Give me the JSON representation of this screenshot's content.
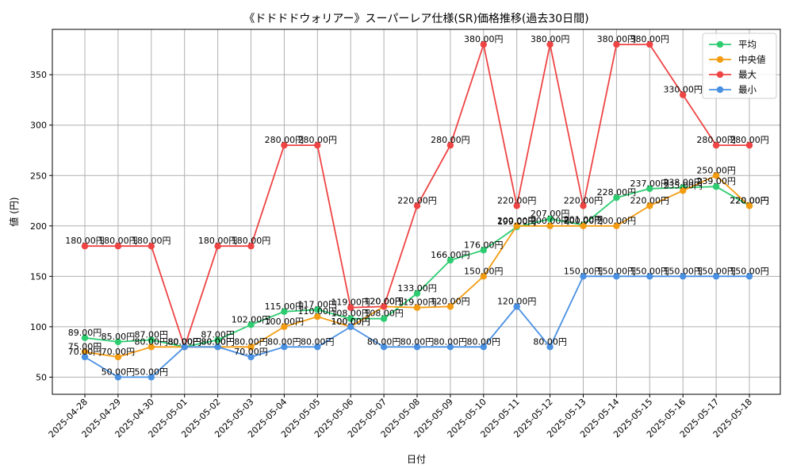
{
  "chart_data": {
    "type": "line",
    "title": "《ドドドドウォリアー》スーパーレア仕様(SR)価格推移(過去30日間)",
    "xlabel": "日付",
    "ylabel": "値 (円)",
    "ylim": [
      33,
      395
    ],
    "yticks": [
      50,
      100,
      150,
      200,
      250,
      300,
      350
    ],
    "grid": true,
    "legend_position": "top-right",
    "label_suffix": "円",
    "categories": [
      "2025-04-28",
      "2025-04-29",
      "2025-04-30",
      "2025-05-01",
      "2025-05-02",
      "2025-05-03",
      "2025-05-04",
      "2025-05-05",
      "2025-05-06",
      "2025-05-07",
      "2025-05-08",
      "2025-05-09",
      "2025-05-10",
      "2025-05-11",
      "2025-05-12",
      "2025-05-13",
      "2025-05-14",
      "2025-05-15",
      "2025-05-16",
      "2025-05-17",
      "2025-05-18"
    ],
    "series": [
      {
        "name": "平均",
        "color": "#2ecc71",
        "values": [
          89,
          85,
          87,
          80,
          87,
          102,
          115,
          117,
          108,
          108,
          133,
          166,
          176,
          199,
          207,
          201,
          228,
          237,
          238,
          239,
          220
        ]
      },
      {
        "name": "中央値",
        "color": "#f39c12",
        "values": [
          75,
          70,
          80,
          80,
          80,
          80,
          100,
          110,
          100,
          120,
          119,
          120,
          150,
          200,
          200,
          200,
          200,
          220,
          235,
          250,
          220
        ]
      },
      {
        "name": "最大",
        "color": "#ef4444",
        "values": [
          180,
          180,
          180,
          80,
          180,
          180,
          280,
          280,
          119,
          120,
          220,
          280,
          380,
          220,
          380,
          220,
          380,
          380,
          330,
          280,
          280
        ]
      },
      {
        "name": "最小",
        "color": "#4a90e2",
        "values": [
          70,
          50,
          50,
          80,
          80,
          70,
          80,
          80,
          100,
          80,
          80,
          80,
          80,
          120,
          80,
          150,
          150,
          150,
          150,
          150,
          150
        ]
      }
    ]
  }
}
